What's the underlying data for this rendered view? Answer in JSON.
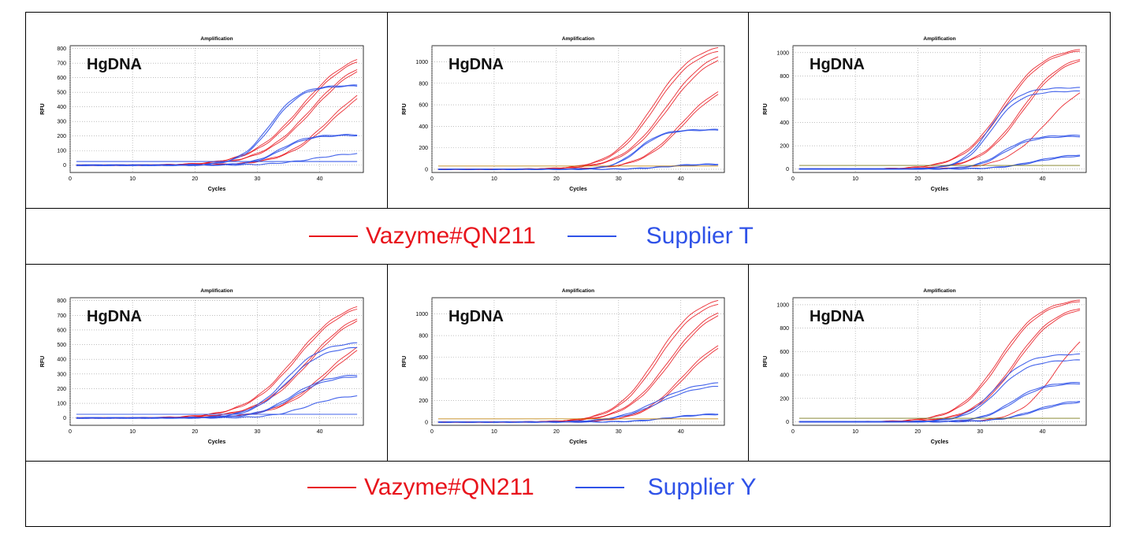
{
  "colors": {
    "vazyme": "#e8141c",
    "supplier": "#2f52e8",
    "baseline": "#c08000",
    "baseline2": "#6b6b00"
  },
  "legend_top": {
    "vazyme_label": "Vazyme#QN211",
    "supplier_label": "Supplier T"
  },
  "legend_bottom": {
    "vazyme_label": "Vazyme#QN211",
    "supplier_label": "Supplier Y"
  },
  "chart_data": [
    {
      "type": "line",
      "title": "Amplification",
      "xlabel": "Cycles",
      "ylabel": "RFU",
      "annotation": "HgDNA",
      "xlim": [
        0,
        47
      ],
      "ylim": [
        -50,
        820
      ],
      "xticks": [
        0,
        10,
        20,
        30,
        40
      ],
      "yticks": [
        0,
        100,
        200,
        300,
        400,
        500,
        600,
        700,
        800
      ],
      "grid": true,
      "series": [
        {
          "group": "vazyme",
          "plateau": 800,
          "ct": 37,
          "k": 0.25
        },
        {
          "group": "vazyme",
          "plateau": 790,
          "ct": 37.3,
          "k": 0.25
        },
        {
          "group": "vazyme",
          "plateau": 760,
          "ct": 38.5,
          "k": 0.25
        },
        {
          "group": "vazyme",
          "plateau": 750,
          "ct": 38.8,
          "k": 0.25
        },
        {
          "group": "vazyme",
          "plateau": 620,
          "ct": 41.5,
          "k": 0.27
        },
        {
          "group": "vazyme",
          "plateau": 600,
          "ct": 41.8,
          "k": 0.27
        },
        {
          "group": "supplier",
          "plateau": 550,
          "ct": 32,
          "k": 0.42
        },
        {
          "group": "supplier",
          "plateau": 545,
          "ct": 32.3,
          "k": 0.42
        },
        {
          "group": "supplier",
          "plateau": 210,
          "ct": 33.5,
          "k": 0.45
        },
        {
          "group": "supplier",
          "plateau": 205,
          "ct": 33.8,
          "k": 0.45
        },
        {
          "group": "supplier",
          "plateau": 90,
          "ct": 39,
          "k": 0.3
        },
        {
          "group": "supplier",
          "plateau": 25,
          "ct": 30,
          "k": 0.1,
          "flat": 25
        }
      ]
    },
    {
      "type": "line",
      "title": "Amplification",
      "xlabel": "Cycles",
      "ylabel": "RFU",
      "annotation": "HgDNA",
      "xlim": [
        0,
        47
      ],
      "ylim": [
        -30,
        1150
      ],
      "xticks": [
        0,
        10,
        20,
        30,
        40
      ],
      "yticks": [
        0,
        200,
        400,
        600,
        800,
        1000
      ],
      "grid": true,
      "series": [
        {
          "group": "vazyme",
          "plateau": 1180,
          "ct": 35.5,
          "k": 0.3
        },
        {
          "group": "vazyme",
          "plateau": 1150,
          "ct": 35.8,
          "k": 0.3
        },
        {
          "group": "vazyme",
          "plateau": 1150,
          "ct": 37.6,
          "k": 0.28
        },
        {
          "group": "vazyme",
          "plateau": 1120,
          "ct": 37.9,
          "k": 0.28
        },
        {
          "group": "vazyme",
          "plateau": 840,
          "ct": 40,
          "k": 0.3
        },
        {
          "group": "vazyme",
          "plateau": 820,
          "ct": 40.3,
          "k": 0.3
        },
        {
          "group": "supplier",
          "plateau": 370,
          "ct": 33,
          "k": 0.5
        },
        {
          "group": "supplier",
          "plateau": 365,
          "ct": 33.2,
          "k": 0.5
        },
        {
          "group": "supplier",
          "plateau": 50,
          "ct": 37,
          "k": 0.4
        },
        {
          "group": "supplier",
          "plateau": 45,
          "ct": 37.5,
          "k": 0.4
        },
        {
          "group": "baseline",
          "flat": 30
        }
      ]
    },
    {
      "type": "line",
      "title": "Amplification",
      "xlabel": "Cycles",
      "ylabel": "RFU",
      "annotation": "HgDNA",
      "xlim": [
        0,
        47
      ],
      "ylim": [
        -30,
        1060
      ],
      "xticks": [
        0,
        10,
        20,
        30,
        40
      ],
      "yticks": [
        0,
        200,
        400,
        600,
        800,
        1000
      ],
      "grid": true,
      "series": [
        {
          "group": "vazyme",
          "plateau": 1050,
          "ct": 33.5,
          "k": 0.3
        },
        {
          "group": "vazyme",
          "plateau": 1040,
          "ct": 33.8,
          "k": 0.3
        },
        {
          "group": "vazyme",
          "plateau": 1000,
          "ct": 36.5,
          "k": 0.3
        },
        {
          "group": "vazyme",
          "plateau": 990,
          "ct": 36.8,
          "k": 0.3
        },
        {
          "group": "vazyme",
          "plateau": 780,
          "ct": 40.5,
          "k": 0.3
        },
        {
          "group": "supplier",
          "plateau": 700,
          "ct": 31.5,
          "k": 0.45
        },
        {
          "group": "supplier",
          "plateau": 670,
          "ct": 31.8,
          "k": 0.45
        },
        {
          "group": "supplier",
          "plateau": 290,
          "ct": 33.5,
          "k": 0.45
        },
        {
          "group": "supplier",
          "plateau": 280,
          "ct": 33.8,
          "k": 0.45
        },
        {
          "group": "supplier",
          "plateau": 130,
          "ct": 38.5,
          "k": 0.35
        },
        {
          "group": "supplier",
          "plateau": 120,
          "ct": 38.8,
          "k": 0.35
        },
        {
          "group": "baseline2",
          "flat": 30
        }
      ]
    },
    {
      "type": "line",
      "title": "Amplification",
      "xlabel": "Cycles",
      "ylabel": "RFU",
      "annotation": "HgDNA",
      "xlim": [
        0,
        47
      ],
      "ylim": [
        -50,
        820
      ],
      "xticks": [
        0,
        10,
        20,
        30,
        40
      ],
      "yticks": [
        0,
        100,
        200,
        300,
        400,
        500,
        600,
        700,
        800
      ],
      "grid": true,
      "series": [
        {
          "group": "vazyme",
          "plateau": 820,
          "ct": 36,
          "k": 0.25
        },
        {
          "group": "vazyme",
          "plateau": 810,
          "ct": 36.3,
          "k": 0.25
        },
        {
          "group": "vazyme",
          "plateau": 770,
          "ct": 38,
          "k": 0.25
        },
        {
          "group": "vazyme",
          "plateau": 760,
          "ct": 38.3,
          "k": 0.25
        },
        {
          "group": "vazyme",
          "plateau": 620,
          "ct": 41,
          "k": 0.25
        },
        {
          "group": "vazyme",
          "plateau": 600,
          "ct": 41.3,
          "k": 0.25
        },
        {
          "group": "supplier",
          "plateau": 520,
          "ct": 34.5,
          "k": 0.35
        },
        {
          "group": "supplier",
          "plateau": 490,
          "ct": 34.8,
          "k": 0.35
        },
        {
          "group": "supplier",
          "plateau": 300,
          "ct": 35.5,
          "k": 0.35
        },
        {
          "group": "supplier",
          "plateau": 290,
          "ct": 35.8,
          "k": 0.35
        },
        {
          "group": "supplier",
          "plateau": 160,
          "ct": 38,
          "k": 0.35
        },
        {
          "group": "supplier",
          "plateau": 25,
          "ct": 30,
          "k": 0.1,
          "flat": 25
        }
      ]
    },
    {
      "type": "line",
      "title": "Amplification",
      "xlabel": "Cycles",
      "ylabel": "RFU",
      "annotation": "HgDNA",
      "xlim": [
        0,
        47
      ],
      "ylim": [
        -30,
        1150
      ],
      "xticks": [
        0,
        10,
        20,
        30,
        40
      ],
      "yticks": [
        0,
        200,
        400,
        600,
        800,
        1000
      ],
      "grid": true,
      "series": [
        {
          "group": "vazyme",
          "plateau": 1180,
          "ct": 36,
          "k": 0.3
        },
        {
          "group": "vazyme",
          "plateau": 1150,
          "ct": 36.3,
          "k": 0.3
        },
        {
          "group": "vazyme",
          "plateau": 1120,
          "ct": 38,
          "k": 0.28
        },
        {
          "group": "vazyme",
          "plateau": 1100,
          "ct": 38.3,
          "k": 0.28
        },
        {
          "group": "vazyme",
          "plateau": 830,
          "ct": 40.2,
          "k": 0.3
        },
        {
          "group": "vazyme",
          "plateau": 810,
          "ct": 40.5,
          "k": 0.3
        },
        {
          "group": "supplier",
          "plateau": 380,
          "ct": 36,
          "k": 0.3
        },
        {
          "group": "supplier",
          "plateau": 350,
          "ct": 36.3,
          "k": 0.3
        },
        {
          "group": "supplier",
          "plateau": 80,
          "ct": 38,
          "k": 0.35
        },
        {
          "group": "supplier",
          "plateau": 75,
          "ct": 38.3,
          "k": 0.35
        },
        {
          "group": "baseline",
          "flat": 30
        }
      ]
    },
    {
      "type": "line",
      "title": "Amplification",
      "xlabel": "Cycles",
      "ylabel": "RFU",
      "annotation": "HgDNA",
      "xlim": [
        0,
        47
      ],
      "ylim": [
        -30,
        1060
      ],
      "xticks": [
        0,
        10,
        20,
        30,
        40
      ],
      "yticks": [
        0,
        200,
        400,
        600,
        800,
        1000
      ],
      "grid": true,
      "series": [
        {
          "group": "vazyme",
          "plateau": 1060,
          "ct": 33,
          "k": 0.3
        },
        {
          "group": "vazyme",
          "plateau": 1050,
          "ct": 33.3,
          "k": 0.3
        },
        {
          "group": "vazyme",
          "plateau": 1010,
          "ct": 35.5,
          "k": 0.3
        },
        {
          "group": "vazyme",
          "plateau": 1000,
          "ct": 35.8,
          "k": 0.3
        },
        {
          "group": "vazyme",
          "plateau": 850,
          "ct": 42,
          "k": 0.35
        },
        {
          "group": "supplier",
          "plateau": 580,
          "ct": 32.5,
          "k": 0.4
        },
        {
          "group": "supplier",
          "plateau": 530,
          "ct": 32.8,
          "k": 0.4
        },
        {
          "group": "supplier",
          "plateau": 340,
          "ct": 35,
          "k": 0.4
        },
        {
          "group": "supplier",
          "plateau": 330,
          "ct": 35.3,
          "k": 0.4
        },
        {
          "group": "supplier",
          "plateau": 190,
          "ct": 38.5,
          "k": 0.35
        },
        {
          "group": "supplier",
          "plateau": 180,
          "ct": 38.8,
          "k": 0.35
        },
        {
          "group": "baseline2",
          "flat": 30
        }
      ]
    }
  ]
}
